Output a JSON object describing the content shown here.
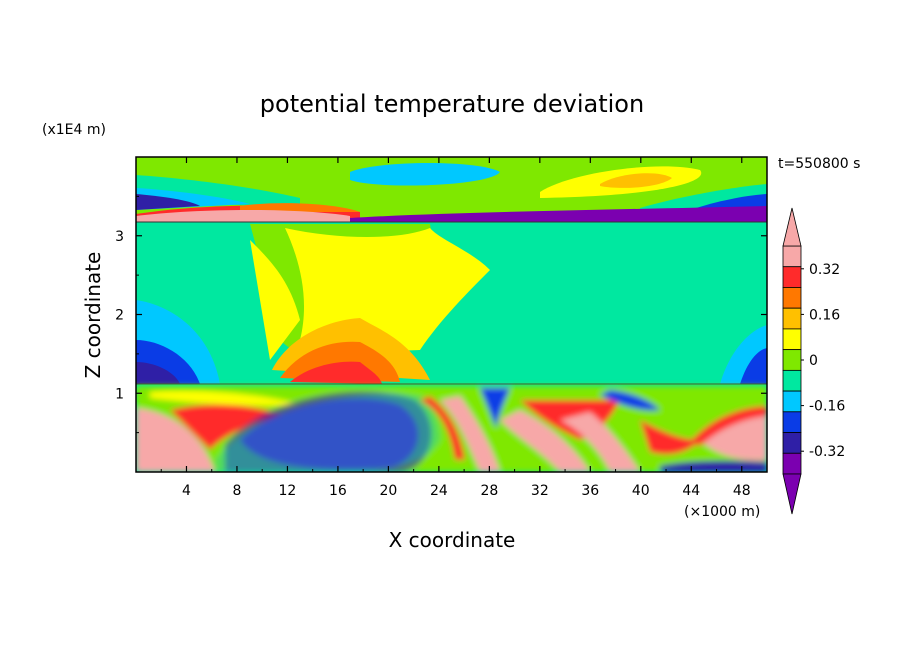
{
  "chart_data": {
    "type": "heatmap",
    "title": "potential temperature deviation",
    "xlabel": "X coordinate",
    "ylabel": "Z coordinate",
    "x_unit": "(×1000 m)",
    "y_unit": "(x1E4 m)",
    "time_label": "t=550800 s",
    "xlim": [
      0,
      50
    ],
    "ylim": [
      0,
      4
    ],
    "x_ticks": [
      4,
      8,
      12,
      16,
      20,
      24,
      28,
      32,
      36,
      40,
      44,
      48
    ],
    "y_ticks": [
      1,
      2,
      3
    ],
    "colorbar": {
      "levels": [
        -0.4,
        -0.32,
        -0.24,
        -0.16,
        -0.08,
        0,
        0.08,
        0.16,
        0.24,
        0.32,
        0.4
      ],
      "labels": [
        "0.32",
        "0.16",
        "0",
        "-0.16",
        "-0.32"
      ],
      "label_values": [
        0.32,
        0.16,
        0,
        -0.16,
        -0.32
      ],
      "colors": [
        "#7b00b0",
        "#2f1fa6",
        "#0a3ce6",
        "#00c8ff",
        "#00e8a0",
        "#7fe800",
        "#ffff00",
        "#ffc000",
        "#ff7800",
        "#ff2b2b",
        "#f7a8a8"
      ]
    }
  }
}
